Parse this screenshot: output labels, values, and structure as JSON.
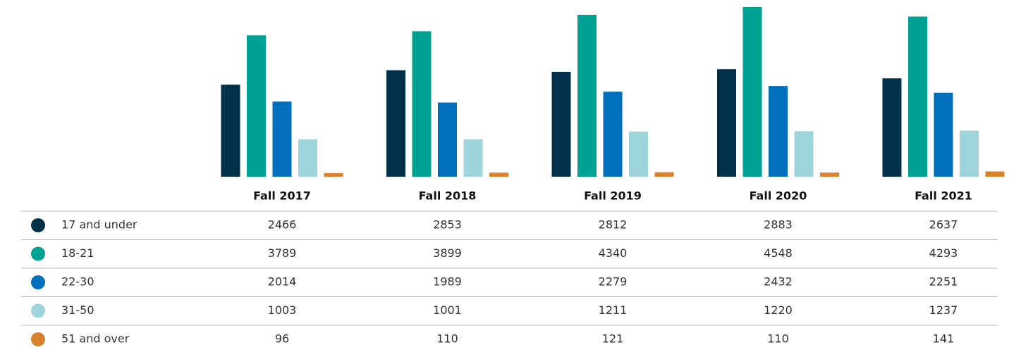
{
  "chart_data": {
    "type": "bar",
    "categories": [
      "Fall 2017",
      "Fall 2018",
      "Fall 2019",
      "Fall 2020",
      "Fall 2021"
    ],
    "series": [
      {
        "name": "17 and under",
        "color": "#00304a",
        "values": [
          2466,
          2853,
          2812,
          2883,
          2637
        ]
      },
      {
        "name": "18-21",
        "color": "#00a293",
        "values": [
          3789,
          3899,
          4340,
          4548,
          4293
        ]
      },
      {
        "name": "22-30",
        "color": "#0070bc",
        "values": [
          2014,
          1989,
          2279,
          2432,
          2251
        ]
      },
      {
        "name": "31-50",
        "color": "#9ed4db",
        "values": [
          1003,
          1001,
          1211,
          1220,
          1237
        ]
      },
      {
        "name": "51 and over",
        "color": "#d9822b",
        "values": [
          96,
          110,
          121,
          110,
          141
        ]
      }
    ]
  }
}
